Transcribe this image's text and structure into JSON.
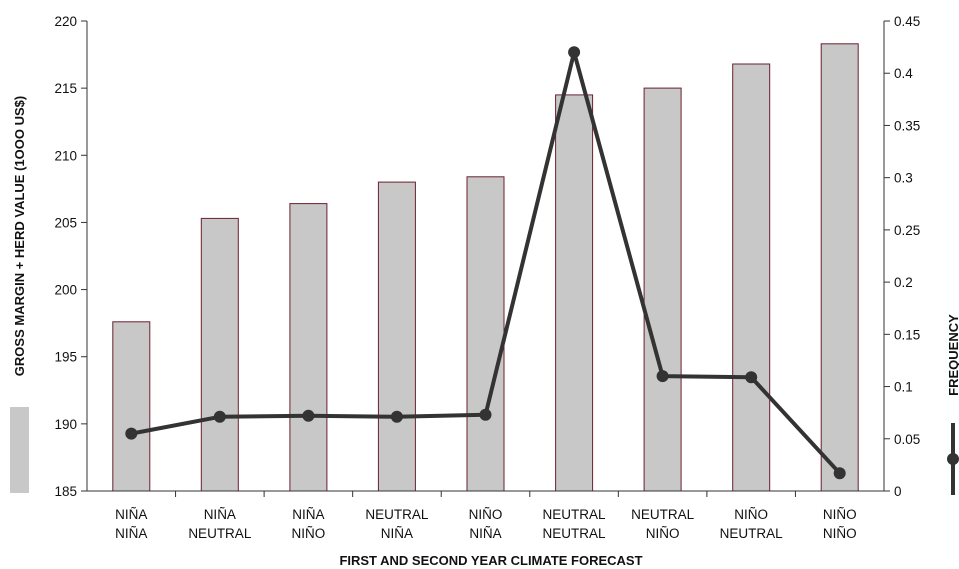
{
  "chart_data": {
    "type": "bar",
    "xlabel": "FIRST AND SECOND YEAR CLIMATE FORECAST",
    "ylabel": "GROSS MARGIN + HERD VALUE (1OOO US$)",
    "y2label": "FREQUENCY",
    "ylim": [
      185,
      220
    ],
    "y2lim": [
      0,
      0.45
    ],
    "yticks": [
      "185",
      "190",
      "195",
      "200",
      "205",
      "210",
      "215",
      "220"
    ],
    "y2ticks": [
      "0",
      "0.05",
      "0.1",
      "0.15",
      "0.2",
      "0.25",
      "0.3",
      "0.35",
      "0.4",
      "0.45"
    ],
    "categories": [
      [
        "NIÑA",
        "NIÑA"
      ],
      [
        "NIÑA",
        "NEUTRAL"
      ],
      [
        "NIÑA",
        "NIÑO"
      ],
      [
        "NEUTRAL",
        "NIÑA"
      ],
      [
        "NIÑO",
        "NIÑA"
      ],
      [
        "NEUTRAL",
        "NEUTRAL"
      ],
      [
        "NEUTRAL",
        "NIÑO"
      ],
      [
        "NIÑO",
        "NEUTRAL"
      ],
      [
        "NIÑO",
        "NIÑO"
      ]
    ],
    "series": [
      {
        "type": "bar",
        "axis": "left",
        "color": "#c8c8c8",
        "edge_color": "#6b1f2e",
        "values": [
          197.6,
          205.3,
          206.4,
          208.0,
          208.4,
          214.5,
          215.0,
          216.8,
          218.3
        ]
      },
      {
        "type": "line",
        "axis": "right",
        "color": "#333333",
        "values": [
          0.055,
          0.071,
          0.072,
          0.071,
          0.073,
          0.42,
          0.11,
          0.109,
          0.017
        ]
      }
    ],
    "grid": false,
    "legend": "right"
  }
}
